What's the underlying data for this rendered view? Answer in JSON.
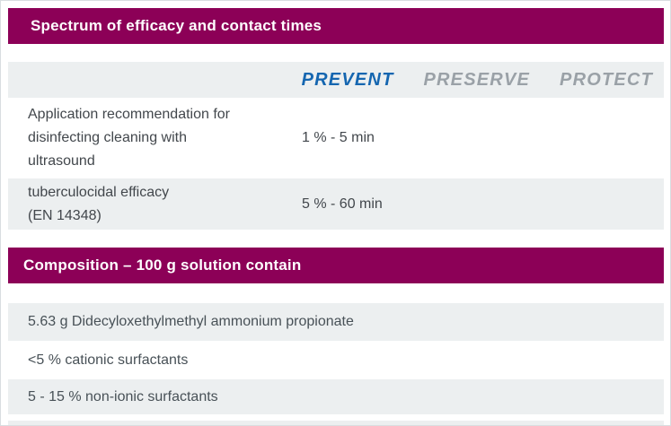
{
  "colors": {
    "section_header_bg": "#8c0057",
    "section_header_text": "#ffffff",
    "row_gray_bg": "#eceff0",
    "body_text": "#42474c",
    "brand_prevent": "#1566b0",
    "brand_preserve": "#9aa1a7",
    "brand_protect": "#9aa1a7"
  },
  "efficacy_section": {
    "title": "Spectrum of efficacy and contact times",
    "brand_columns": [
      {
        "label": "PREVENT",
        "color": "#1566b0"
      },
      {
        "label": "PRESERVE",
        "color": "#9aa1a7"
      },
      {
        "label": "PROTECT",
        "color": "#9aa1a7"
      }
    ],
    "rows": [
      {
        "lines": [
          "Application recommendation for",
          "disinfecting cleaning with",
          "ultrasound"
        ],
        "prevent_value": "1 % - 5 min",
        "preserve_value": "",
        "protect_value": ""
      },
      {
        "lines": [
          "tuberculocidal efficacy",
          "(EN 14348)"
        ],
        "prevent_value": "5 % - 60 min",
        "preserve_value": "",
        "protect_value": ""
      }
    ]
  },
  "composition_section": {
    "title": "Composition – 100 g solution contain",
    "rows": [
      "5.63 g Didecyloxethylmethyl ammonium propionate",
      "<5 % cationic surfactants",
      "5 - 15 % non-ionic surfactants"
    ]
  }
}
